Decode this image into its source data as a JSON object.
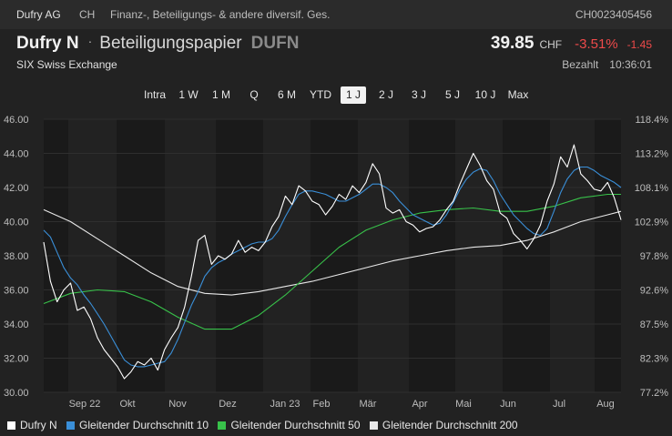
{
  "header": {
    "issuer": "Dufry AG",
    "country": "CH",
    "category": "Finanz-, Beteiligungs- & andere diversif. Ges.",
    "isin": "CH0023405456"
  },
  "instrument": {
    "name": "Dufry N",
    "separator": "·",
    "type": "Beteiligungspapier",
    "symbol": "DUFN",
    "exchange": "SIX Swiss Exchange"
  },
  "quote": {
    "price": "39.85",
    "currency": "CHF",
    "change_pct": "-3.51%",
    "change_abs": "-1.45",
    "status": "Bezahlt",
    "time": "10:36:01"
  },
  "ranges": {
    "items": [
      "Intra",
      "1 W",
      "1 M",
      "Q",
      "6 M",
      "YTD",
      "1 J",
      "2 J",
      "3 J",
      "5 J",
      "10 J",
      "Max"
    ],
    "active": "1 J"
  },
  "colors": {
    "price": "#ffffff",
    "ma10": "#3a8fd8",
    "ma50": "#38c24a",
    "ma200": "#e8e8e8",
    "negative": "#ef4a4a",
    "band": "#1a1a1a"
  },
  "chart_data": {
    "type": "line",
    "ylim": [
      30,
      46
    ],
    "y_ticks": [
      "46.00",
      "44.00",
      "42.00",
      "40.00",
      "38.00",
      "36.00",
      "34.00",
      "32.00",
      "30.00"
    ],
    "y2_ticks": [
      "118.4%",
      "113.2%",
      "108.1%",
      "102.9%",
      "97.8%",
      "92.6%",
      "87.5%",
      "82.3%",
      "77.2%"
    ],
    "x_labels": [
      "Sep 22",
      "Okt",
      "Nov",
      "Dez",
      "Jan 23",
      "Feb",
      "Mär",
      "Apr",
      "Mai",
      "Jun",
      "Jul",
      "Aug"
    ],
    "series": [
      {
        "name": "Dufry N",
        "color": "#ffffff",
        "width": 1.1,
        "points": [
          [
            0,
            38.8
          ],
          [
            1,
            36.5
          ],
          [
            2,
            35.3
          ],
          [
            3,
            36.0
          ],
          [
            4,
            36.4
          ],
          [
            5,
            34.8
          ],
          [
            6,
            35.0
          ],
          [
            7,
            34.3
          ],
          [
            8,
            33.2
          ],
          [
            9,
            32.5
          ],
          [
            10,
            32.0
          ],
          [
            11,
            31.5
          ],
          [
            12,
            30.8
          ],
          [
            13,
            31.2
          ],
          [
            14,
            31.8
          ],
          [
            15,
            31.6
          ],
          [
            16,
            32.0
          ],
          [
            17,
            31.3
          ],
          [
            18,
            32.5
          ],
          [
            19,
            33.2
          ],
          [
            20,
            33.8
          ],
          [
            21,
            35.0
          ],
          [
            22,
            36.8
          ],
          [
            23,
            38.9
          ],
          [
            24,
            39.2
          ],
          [
            25,
            37.5
          ],
          [
            26,
            38.0
          ],
          [
            27,
            37.8
          ],
          [
            28,
            38.1
          ],
          [
            29,
            38.9
          ],
          [
            30,
            38.2
          ],
          [
            31,
            38.5
          ],
          [
            32,
            38.3
          ],
          [
            33,
            38.8
          ],
          [
            34,
            39.7
          ],
          [
            35,
            40.3
          ],
          [
            36,
            41.5
          ],
          [
            37,
            41.0
          ],
          [
            38,
            42.1
          ],
          [
            39,
            41.8
          ],
          [
            40,
            41.2
          ],
          [
            41,
            41.0
          ],
          [
            42,
            40.4
          ],
          [
            43,
            40.9
          ],
          [
            44,
            41.6
          ],
          [
            45,
            41.3
          ],
          [
            46,
            42.1
          ],
          [
            47,
            41.7
          ],
          [
            48,
            42.3
          ],
          [
            49,
            43.4
          ],
          [
            50,
            42.8
          ],
          [
            51,
            40.8
          ],
          [
            52,
            40.5
          ],
          [
            53,
            40.7
          ],
          [
            54,
            40.0
          ],
          [
            55,
            39.8
          ],
          [
            56,
            39.4
          ],
          [
            57,
            39.6
          ],
          [
            58,
            39.7
          ],
          [
            59,
            40.1
          ],
          [
            60,
            40.7
          ],
          [
            61,
            41.2
          ],
          [
            62,
            42.2
          ],
          [
            63,
            43.1
          ],
          [
            64,
            44.0
          ],
          [
            65,
            43.3
          ],
          [
            66,
            42.4
          ],
          [
            67,
            41.9
          ],
          [
            68,
            40.5
          ],
          [
            69,
            40.2
          ],
          [
            70,
            39.3
          ],
          [
            71,
            38.9
          ],
          [
            72,
            38.4
          ],
          [
            73,
            39.0
          ],
          [
            74,
            39.8
          ],
          [
            75,
            41.2
          ],
          [
            76,
            42.2
          ],
          [
            77,
            43.8
          ],
          [
            78,
            43.2
          ],
          [
            79,
            44.5
          ],
          [
            80,
            42.8
          ],
          [
            81,
            42.4
          ],
          [
            82,
            41.9
          ],
          [
            83,
            41.8
          ],
          [
            84,
            42.3
          ],
          [
            85,
            41.4
          ],
          [
            86,
            40.1
          ]
        ]
      },
      {
        "name": "Gleitender Durchschnitt 10",
        "color": "#3a8fd8",
        "width": 1.1,
        "points": [
          [
            0,
            39.5
          ],
          [
            1,
            39.1
          ],
          [
            2,
            38.2
          ],
          [
            3,
            37.3
          ],
          [
            4,
            36.7
          ],
          [
            5,
            36.3
          ],
          [
            6,
            35.7
          ],
          [
            7,
            35.2
          ],
          [
            8,
            34.6
          ],
          [
            9,
            34.0
          ],
          [
            10,
            33.3
          ],
          [
            11,
            32.6
          ],
          [
            12,
            31.9
          ],
          [
            13,
            31.6
          ],
          [
            14,
            31.5
          ],
          [
            15,
            31.5
          ],
          [
            16,
            31.6
          ],
          [
            17,
            31.7
          ],
          [
            18,
            31.8
          ],
          [
            19,
            32.3
          ],
          [
            20,
            33.1
          ],
          [
            21,
            34.1
          ],
          [
            22,
            35.1
          ],
          [
            23,
            35.9
          ],
          [
            24,
            36.8
          ],
          [
            25,
            37.3
          ],
          [
            26,
            37.6
          ],
          [
            27,
            37.8
          ],
          [
            28,
            38.1
          ],
          [
            29,
            38.3
          ],
          [
            30,
            38.5
          ],
          [
            31,
            38.7
          ],
          [
            32,
            38.8
          ],
          [
            33,
            38.8
          ],
          [
            34,
            39.0
          ],
          [
            35,
            39.5
          ],
          [
            36,
            40.3
          ],
          [
            37,
            41.0
          ],
          [
            38,
            41.6
          ],
          [
            39,
            41.8
          ],
          [
            40,
            41.8
          ],
          [
            41,
            41.7
          ],
          [
            42,
            41.6
          ],
          [
            43,
            41.4
          ],
          [
            44,
            41.2
          ],
          [
            45,
            41.2
          ],
          [
            46,
            41.4
          ],
          [
            47,
            41.6
          ],
          [
            48,
            41.9
          ],
          [
            49,
            42.2
          ],
          [
            50,
            42.2
          ],
          [
            51,
            42.0
          ],
          [
            52,
            41.7
          ],
          [
            53,
            41.2
          ],
          [
            54,
            40.8
          ],
          [
            55,
            40.4
          ],
          [
            56,
            40.2
          ],
          [
            57,
            40.0
          ],
          [
            58,
            39.8
          ],
          [
            59,
            39.9
          ],
          [
            60,
            40.4
          ],
          [
            61,
            41.1
          ],
          [
            62,
            41.9
          ],
          [
            63,
            42.5
          ],
          [
            64,
            42.9
          ],
          [
            65,
            43.1
          ],
          [
            66,
            43.0
          ],
          [
            67,
            42.4
          ],
          [
            68,
            41.6
          ],
          [
            69,
            41.0
          ],
          [
            70,
            40.4
          ],
          [
            71,
            40.0
          ],
          [
            72,
            39.6
          ],
          [
            73,
            39.3
          ],
          [
            74,
            39.2
          ],
          [
            75,
            39.6
          ],
          [
            76,
            40.6
          ],
          [
            77,
            41.7
          ],
          [
            78,
            42.5
          ],
          [
            79,
            43.0
          ],
          [
            80,
            43.2
          ],
          [
            81,
            43.2
          ],
          [
            82,
            43.0
          ],
          [
            83,
            42.7
          ],
          [
            84,
            42.5
          ],
          [
            85,
            42.3
          ],
          [
            86,
            42.0
          ]
        ]
      },
      {
        "name": "Gleitender Durchschnitt 50",
        "color": "#38c24a",
        "width": 1.1,
        "points": [
          [
            0,
            35.2
          ],
          [
            4,
            35.8
          ],
          [
            8,
            36.0
          ],
          [
            12,
            35.9
          ],
          [
            16,
            35.3
          ],
          [
            20,
            34.4
          ],
          [
            24,
            33.7
          ],
          [
            28,
            33.7
          ],
          [
            32,
            34.5
          ],
          [
            36,
            35.7
          ],
          [
            40,
            37.1
          ],
          [
            44,
            38.5
          ],
          [
            48,
            39.5
          ],
          [
            52,
            40.1
          ],
          [
            56,
            40.5
          ],
          [
            60,
            40.7
          ],
          [
            64,
            40.8
          ],
          [
            68,
            40.6
          ],
          [
            72,
            40.6
          ],
          [
            76,
            40.9
          ],
          [
            80,
            41.4
          ],
          [
            84,
            41.6
          ],
          [
            86,
            41.6
          ]
        ]
      },
      {
        "name": "Gleitender Durchschnitt 200",
        "color": "#e8e8e8",
        "width": 1.1,
        "points": [
          [
            0,
            40.7
          ],
          [
            4,
            40.0
          ],
          [
            8,
            39.0
          ],
          [
            12,
            38.0
          ],
          [
            16,
            37.0
          ],
          [
            20,
            36.2
          ],
          [
            24,
            35.8
          ],
          [
            28,
            35.7
          ],
          [
            32,
            35.9
          ],
          [
            36,
            36.2
          ],
          [
            40,
            36.5
          ],
          [
            44,
            36.9
          ],
          [
            48,
            37.3
          ],
          [
            52,
            37.7
          ],
          [
            56,
            38.0
          ],
          [
            60,
            38.3
          ],
          [
            64,
            38.5
          ],
          [
            68,
            38.6
          ],
          [
            72,
            38.9
          ],
          [
            76,
            39.4
          ],
          [
            80,
            40.0
          ],
          [
            84,
            40.4
          ],
          [
            86,
            40.6
          ]
        ]
      }
    ]
  },
  "legend": {
    "items": [
      {
        "label": "Dufry N",
        "color": "#ffffff"
      },
      {
        "label": "Gleitender Durchschnitt 10",
        "color": "#3a8fd8"
      },
      {
        "label": "Gleitender Durchschnitt 50",
        "color": "#38c24a"
      },
      {
        "label": "Gleitender Durchschnitt 200",
        "color": "#e8e8e8"
      }
    ]
  }
}
